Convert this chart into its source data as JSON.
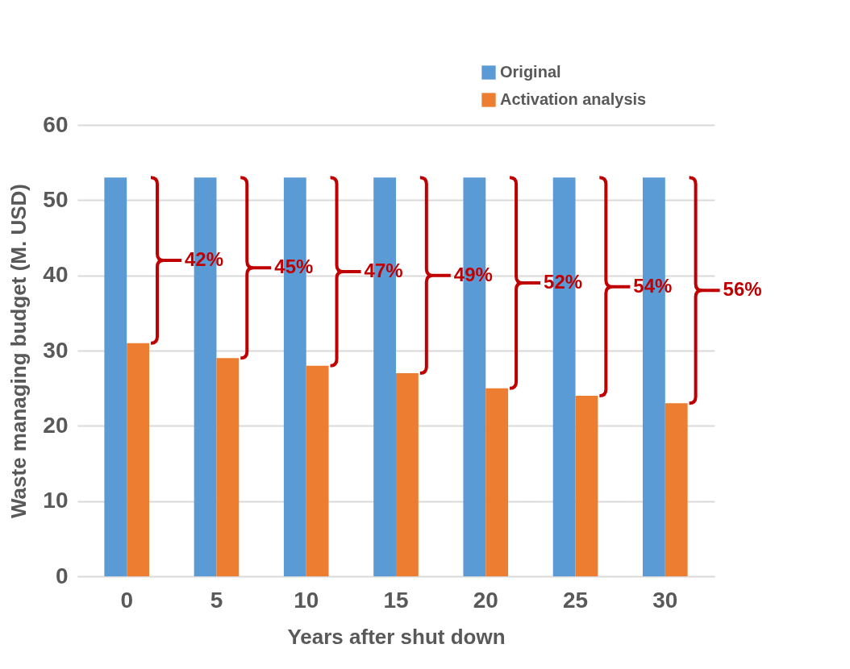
{
  "chart_data": {
    "type": "bar",
    "xlabel": "Years after shut down",
    "ylabel": "Waste managing budget (M. USD)",
    "categories": [
      "0",
      "5",
      "10",
      "15",
      "20",
      "25",
      "30"
    ],
    "series": [
      {
        "name": "Original",
        "color": "#5b9bd5",
        "values": [
          53,
          53,
          53,
          53,
          53,
          53,
          53
        ]
      },
      {
        "name": "Activation analysis",
        "color": "#ed7d31",
        "values": [
          31,
          29,
          28,
          27,
          25,
          24,
          23
        ]
      }
    ],
    "ylim": [
      0,
      60
    ],
    "yticks": [
      0,
      10,
      20,
      30,
      40,
      50,
      60
    ],
    "grid": "y",
    "legend": "top right",
    "annotations": [
      {
        "text": "42%",
        "x": "0",
        "y": 42
      },
      {
        "text": "45%",
        "x": "5",
        "y": 41
      },
      {
        "text": "47%",
        "x": "10",
        "y": 40.5
      },
      {
        "text": "49%",
        "x": "15",
        "y": 40
      },
      {
        "text": "52%",
        "x": "20",
        "y": 39
      },
      {
        "text": "54%",
        "x": "25",
        "y": 38.5
      },
      {
        "text": "56%",
        "x": "30",
        "y": 38
      }
    ]
  }
}
